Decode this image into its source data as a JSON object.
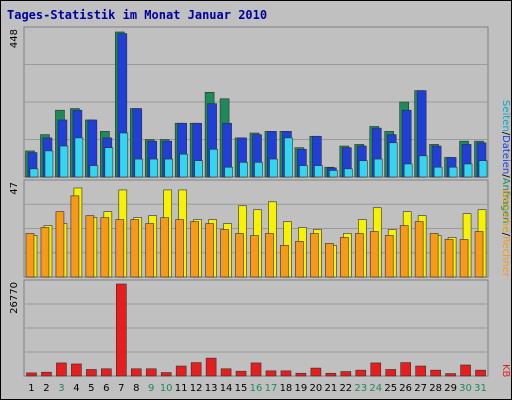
{
  "title": "Tages-Statistik im Monat Januar 2010",
  "colors": {
    "anfragen": "#1e8a5a",
    "dateien": "#1f3fd8",
    "seiten": "#33d6f0",
    "besuche": "#f7f300",
    "rechner": "#f79a1a",
    "kb": "#e61e1e",
    "weekend_label": "#1e8a5a",
    "weekday_label": "#000000",
    "title": "#0000a0"
  },
  "chart_data": [
    {
      "type": "bar",
      "panel": "top",
      "y_max_label": "448",
      "ylim": [
        0,
        448
      ],
      "right_labels": [
        "Anfragen",
        "Dateien",
        "Seiten"
      ],
      "categories": [
        "1",
        "2",
        "3",
        "4",
        "5",
        "6",
        "7",
        "8",
        "9",
        "10",
        "11",
        "12",
        "13",
        "14",
        "15",
        "16",
        "17",
        "18",
        "19",
        "20",
        "21",
        "22",
        "23",
        "24",
        "25",
        "26",
        "27",
        "28",
        "29",
        "30",
        "31"
      ],
      "series": [
        {
          "name": "Anfragen",
          "values": [
            80,
            130,
            205,
            210,
            175,
            140,
            445,
            210,
            115,
            115,
            165,
            165,
            260,
            240,
            120,
            135,
            140,
            140,
            90,
            125,
            30,
            95,
            100,
            155,
            140,
            230,
            265,
            100,
            60,
            110,
            110
          ]
        },
        {
          "name": "Dateien",
          "values": [
            75,
            120,
            175,
            205,
            175,
            120,
            440,
            210,
            110,
            110,
            165,
            165,
            225,
            165,
            120,
            130,
            140,
            140,
            85,
            125,
            28,
            90,
            95,
            150,
            130,
            205,
            265,
            95,
            60,
            100,
            105
          ]
        },
        {
          "name": "Seiten",
          "values": [
            25,
            80,
            95,
            120,
            35,
            90,
            135,
            55,
            55,
            55,
            70,
            50,
            85,
            30,
            45,
            45,
            55,
            120,
            35,
            35,
            20,
            25,
            50,
            55,
            105,
            40,
            65,
            30,
            30,
            40,
            50
          ]
        }
      ]
    },
    {
      "type": "bar",
      "panel": "middle",
      "y_max_label": "47",
      "ylim": [
        0,
        47
      ],
      "right_labels": [
        "Rechner",
        "Besuche"
      ],
      "series": [
        {
          "name": "Besuche",
          "values": [
            21,
            26,
            27,
            45,
            30,
            33,
            44,
            30,
            31,
            44,
            44,
            29,
            29,
            27,
            36,
            34,
            38,
            28,
            25,
            24,
            16,
            22,
            29,
            35,
            24,
            33,
            31,
            21,
            20,
            32,
            34
          ]
        },
        {
          "name": "Rechner",
          "values": [
            22,
            25,
            33,
            41,
            31,
            30,
            29,
            29,
            27,
            30,
            29,
            28,
            27,
            24,
            22,
            21,
            22,
            16,
            18,
            22,
            17,
            20,
            22,
            23,
            21,
            26,
            28,
            22,
            19,
            19,
            23
          ]
        }
      ]
    },
    {
      "type": "bar",
      "panel": "bottom",
      "y_max_label": "26770",
      "ylim": [
        0,
        26770
      ],
      "right_labels": [
        "KB"
      ],
      "series": [
        {
          "name": "KB",
          "values": [
            900,
            1100,
            3800,
            3500,
            1900,
            2100,
            26770,
            2100,
            2100,
            1000,
            2900,
            3900,
            5200,
            2100,
            1400,
            3800,
            1500,
            1500,
            800,
            2300,
            800,
            1300,
            1700,
            3800,
            1900,
            3900,
            2900,
            1700,
            700,
            3200,
            1700
          ]
        }
      ]
    }
  ],
  "x_labels": [
    {
      "text": "1",
      "weekend": false
    },
    {
      "text": "2",
      "weekend": false
    },
    {
      "text": "3",
      "weekend": true
    },
    {
      "text": "4",
      "weekend": false
    },
    {
      "text": "5",
      "weekend": false
    },
    {
      "text": "6",
      "weekend": false
    },
    {
      "text": "7",
      "weekend": false
    },
    {
      "text": "8",
      "weekend": false
    },
    {
      "text": "9",
      "weekend": true
    },
    {
      "text": "10",
      "weekend": true
    },
    {
      "text": "11",
      "weekend": false
    },
    {
      "text": "12",
      "weekend": false
    },
    {
      "text": "13",
      "weekend": false
    },
    {
      "text": "14",
      "weekend": false
    },
    {
      "text": "15",
      "weekend": false
    },
    {
      "text": "16",
      "weekend": true
    },
    {
      "text": "17",
      "weekend": true
    },
    {
      "text": "18",
      "weekend": false
    },
    {
      "text": "19",
      "weekend": false
    },
    {
      "text": "20",
      "weekend": false
    },
    {
      "text": "21",
      "weekend": false
    },
    {
      "text": "22",
      "weekend": false
    },
    {
      "text": "23",
      "weekend": true
    },
    {
      "text": "24",
      "weekend": true
    },
    {
      "text": "25",
      "weekend": false
    },
    {
      "text": "26",
      "weekend": false
    },
    {
      "text": "27",
      "weekend": false
    },
    {
      "text": "28",
      "weekend": false
    },
    {
      "text": "29",
      "weekend": false
    },
    {
      "text": "30",
      "weekend": true
    },
    {
      "text": "31",
      "weekend": true
    }
  ]
}
